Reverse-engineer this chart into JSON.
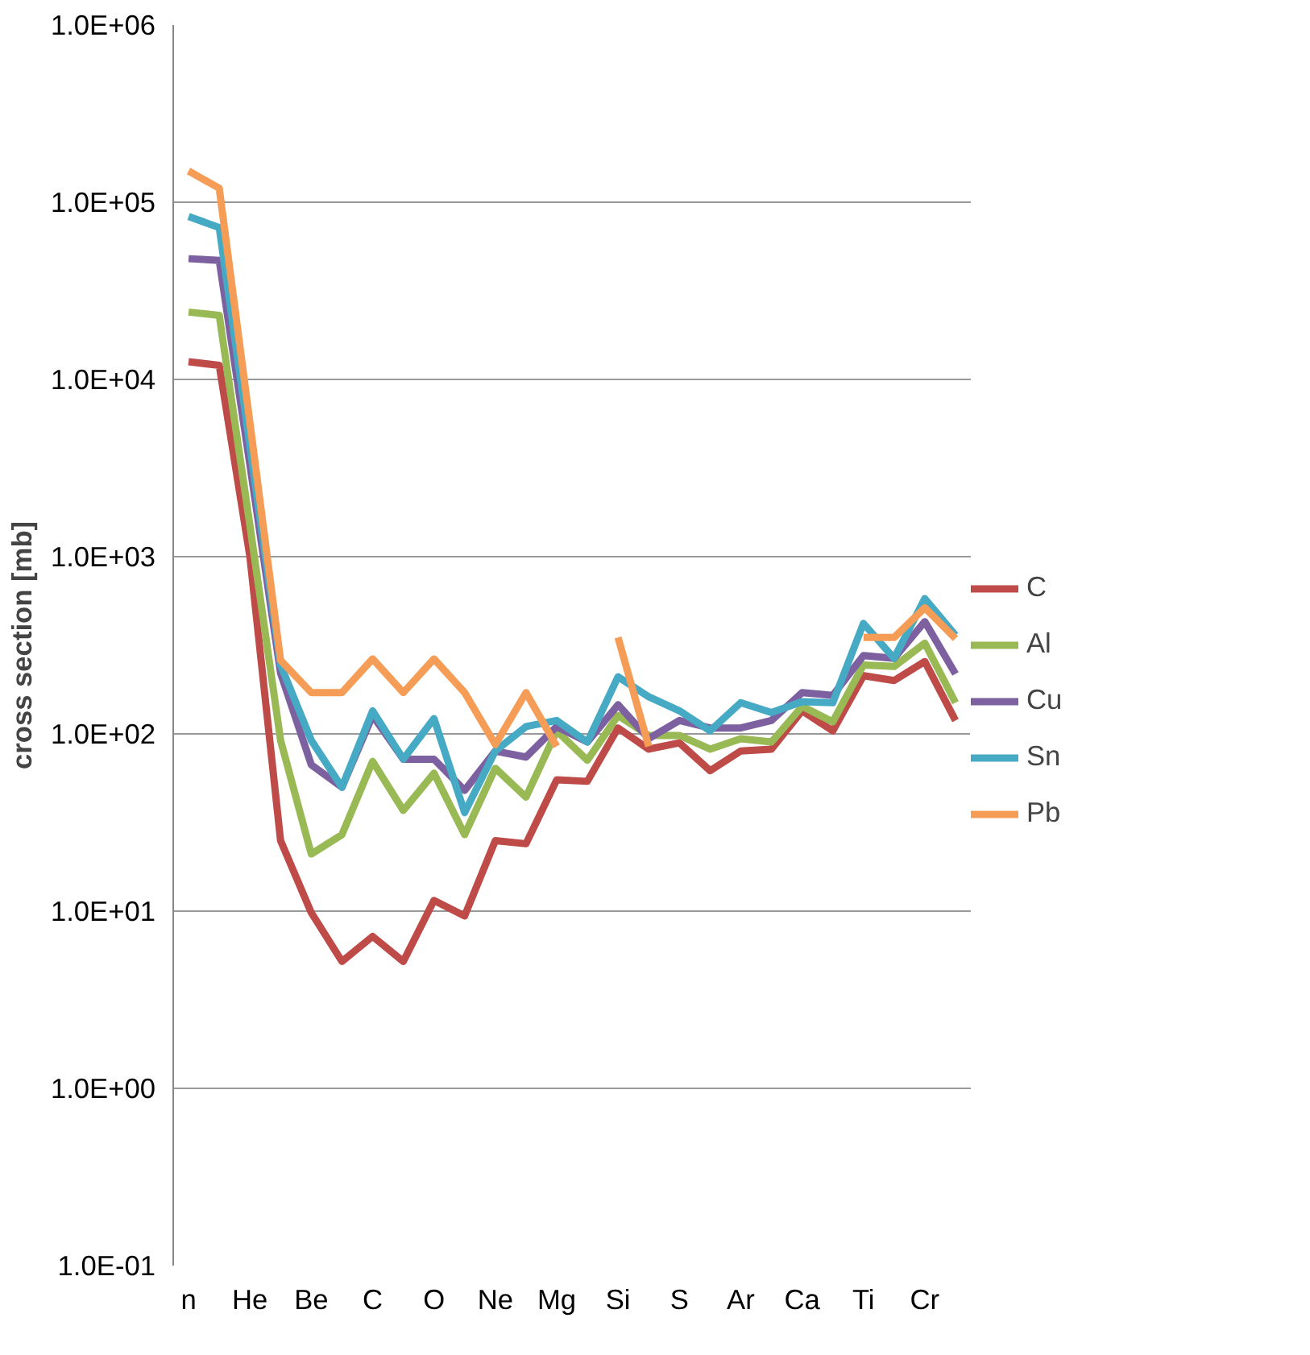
{
  "chart_data": {
    "type": "line",
    "ylabel": "cross section [mb]",
    "log": "y",
    "categories": [
      "n",
      null,
      "He",
      null,
      "Be",
      null,
      "C",
      null,
      "O",
      null,
      "Ne",
      null,
      "Mg",
      null,
      "Si",
      null,
      "S",
      null,
      "Ar",
      null,
      "Ca",
      null,
      "Ti",
      null,
      "Cr",
      null
    ],
    "ylim": [
      0.1,
      1000000
    ],
    "yticks": [
      {
        "value": 0.1,
        "label": "1.0E-01"
      },
      {
        "value": 1,
        "label": "1.0E+00"
      },
      {
        "value": 10,
        "label": "1.0E+01"
      },
      {
        "value": 100,
        "label": "1.0E+02"
      },
      {
        "value": 1000,
        "label": "1.0E+03"
      },
      {
        "value": 10000,
        "label": "1.0E+04"
      },
      {
        "value": 100000,
        "label": "1.0E+05"
      },
      {
        "value": 1000000,
        "label": "1.0E+06"
      }
    ],
    "grid": "y",
    "legend": "right",
    "marker": "none",
    "line_style": "solid",
    "series": [
      {
        "name": "C",
        "color": "#be4b48",
        "values": [
          12600,
          12000,
          1000,
          25,
          9.8,
          5.2,
          7.2,
          5.2,
          11.5,
          9.4,
          25,
          24,
          55,
          54,
          108,
          82,
          89,
          62,
          80,
          82,
          135,
          104,
          213,
          200,
          256,
          119
        ]
      },
      {
        "name": "Al",
        "color": "#98b954",
        "values": [
          24000,
          23000,
          1500,
          92,
          21,
          27,
          70,
          37,
          60,
          27,
          64,
          44,
          104,
          71,
          127,
          98,
          98,
          82,
          94,
          90,
          143,
          117,
          245,
          240,
          325,
          150
        ]
      },
      {
        "name": "Cu",
        "color": "#7d60a0",
        "values": [
          48000,
          47000,
          3300,
          220,
          67,
          50,
          127,
          72,
          72,
          48,
          80,
          74,
          110,
          90,
          146,
          94,
          119,
          108,
          108,
          119,
          171,
          165,
          277,
          267,
          430,
          218
        ]
      },
      {
        "name": "Sn",
        "color": "#46aac5",
        "values": [
          83000,
          72000,
          4200,
          245,
          92,
          50,
          135,
          72,
          122,
          36,
          80,
          110,
          119,
          90,
          210,
          162,
          135,
          104,
          150,
          132,
          152,
          150,
          420,
          267,
          580,
          360
        ]
      },
      {
        "name": "Pb",
        "color": "#f59d56",
        "values": [
          150000,
          120000,
          5700,
          260,
          171,
          171,
          265,
          171,
          265,
          171,
          87,
          171,
          85,
          null,
          350,
          85,
          null,
          null,
          null,
          null,
          null,
          null,
          350,
          350,
          515,
          345
        ]
      }
    ]
  }
}
